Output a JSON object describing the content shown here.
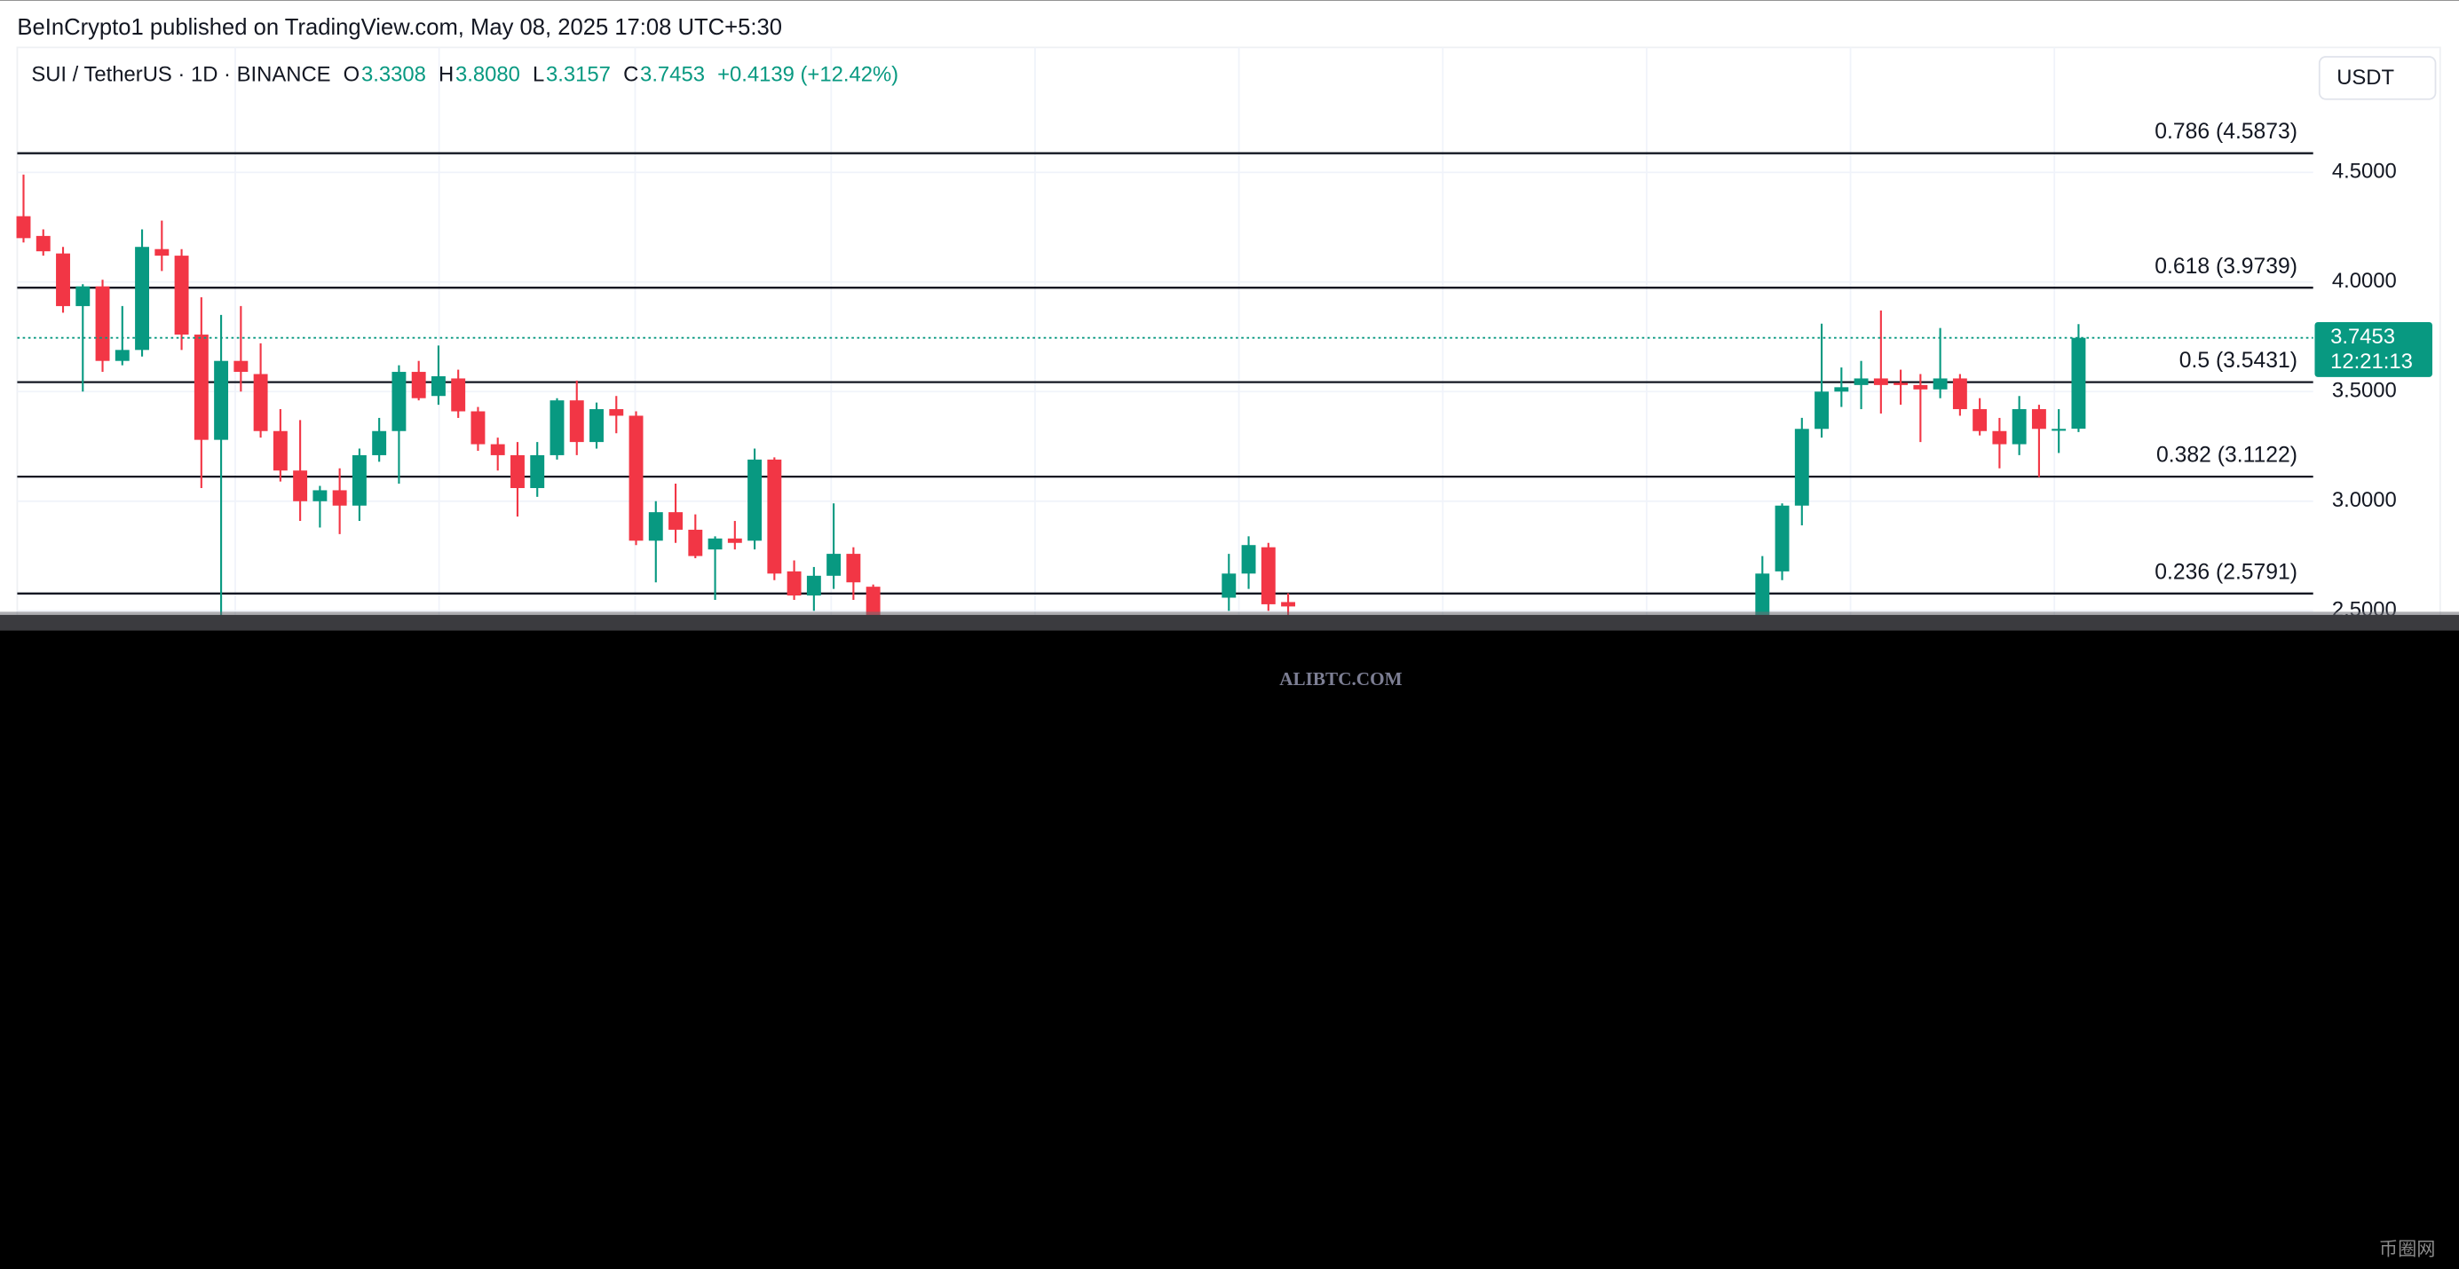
{
  "header": {
    "published": "BeInCrypto1 published on TradingView.com, May 08, 2025 17:08 UTC+5:30"
  },
  "chart_data": {
    "type": "candlestick",
    "symbol": "SUI / TetherUS · 1D · BINANCE",
    "ohlc_legend": [
      {
        "key": "O",
        "value": "3.3308"
      },
      {
        "key": "H",
        "value": "3.8080"
      },
      {
        "key": "L",
        "value": "3.3157"
      },
      {
        "key": "C",
        "value": "3.7453"
      }
    ],
    "change": "+0.4139 (+12.42%)",
    "currency": "USDT",
    "countdown": "12:21:13",
    "up_color": "#089981",
    "down_color": "#f23645",
    "level_color": "#131722",
    "grid": true,
    "ylim": [
      2.46,
      5.07
    ],
    "yticks": [
      {
        "value": 4.5,
        "label": "4.5000"
      },
      {
        "value": 4.0,
        "label": "4.0000"
      },
      {
        "value": 3.5,
        "label": "3.5000"
      },
      {
        "value": 3.0,
        "label": "3.0000"
      },
      {
        "value": 2.5,
        "label": "2.5000"
      }
    ],
    "fib_levels": [
      {
        "label": "0.786 (4.5873)",
        "value": 4.5873
      },
      {
        "label": "0.618 (3.9739)",
        "value": 3.9739
      },
      {
        "label": "0.5 (3.5431)",
        "value": 3.5431
      },
      {
        "label": "0.382 (3.1122)",
        "value": 3.1122
      },
      {
        "label": "0.236 (2.5791)",
        "value": 2.5791
      }
    ],
    "open": [
      4.3,
      4.21,
      4.13,
      3.89,
      3.98,
      3.64,
      3.69,
      4.15,
      4.12,
      3.76,
      3.28,
      3.64,
      3.58,
      3.32,
      3.14,
      3.0,
      3.05,
      2.98,
      3.21,
      3.32,
      3.59,
      3.48,
      3.56,
      3.41,
      3.26,
      3.21,
      3.06,
      3.21,
      3.46,
      3.27,
      3.42,
      3.39,
      2.82,
      2.95,
      2.87,
      2.78,
      2.83,
      2.82,
      3.19,
      2.68,
      2.57,
      2.66,
      2.76,
      2.61,
      null,
      null,
      null,
      null,
      null,
      null,
      null,
      null,
      null,
      null,
      null,
      null,
      null,
      null,
      null,
      null,
      null,
      2.56,
      2.67,
      2.79,
      2.54,
      null,
      null,
      null,
      null,
      null,
      null,
      null,
      null,
      null,
      null,
      null,
      null,
      null,
      null,
      null,
      null,
      null,
      null,
      null,
      null,
      null,
      null,
      null,
      2.48,
      2.68,
      2.98,
      3.33,
      3.5,
      3.53,
      3.56,
      3.54,
      3.53,
      3.51,
      3.56,
      3.42,
      3.32,
      3.26,
      3.42,
      3.33,
      3.3308
    ],
    "high": [
      4.49,
      4.24,
      4.16,
      3.99,
      4.01,
      3.89,
      4.24,
      4.28,
      4.15,
      3.93,
      3.85,
      3.89,
      3.72,
      3.42,
      3.37,
      3.07,
      3.15,
      3.24,
      3.38,
      3.62,
      3.64,
      3.71,
      3.6,
      3.43,
      3.29,
      3.27,
      3.27,
      3.47,
      3.55,
      3.45,
      3.48,
      3.41,
      3.0,
      3.08,
      2.94,
      2.84,
      2.91,
      3.24,
      3.2,
      2.73,
      2.7,
      2.99,
      2.79,
      2.62,
      null,
      null,
      null,
      null,
      null,
      null,
      null,
      null,
      null,
      null,
      null,
      null,
      null,
      null,
      null,
      null,
      null,
      2.76,
      2.84,
      2.81,
      2.58,
      null,
      null,
      null,
      null,
      null,
      null,
      null,
      null,
      null,
      null,
      null,
      null,
      null,
      null,
      null,
      null,
      null,
      null,
      null,
      null,
      null,
      null,
      null,
      2.75,
      2.99,
      3.38,
      3.81,
      3.61,
      3.64,
      3.87,
      3.6,
      3.58,
      3.79,
      3.58,
      3.47,
      3.38,
      3.48,
      3.44,
      3.42,
      3.808
    ],
    "low": [
      4.18,
      4.12,
      3.86,
      3.5,
      3.59,
      3.62,
      3.66,
      4.05,
      3.69,
      3.06,
      2.45,
      3.5,
      3.29,
      3.09,
      2.91,
      2.88,
      2.85,
      2.91,
      3.18,
      3.08,
      3.46,
      3.44,
      3.38,
      3.23,
      3.14,
      2.93,
      3.02,
      3.19,
      3.21,
      3.24,
      3.31,
      2.8,
      2.63,
      2.81,
      2.74,
      2.55,
      2.78,
      2.78,
      2.64,
      2.55,
      2.5,
      2.6,
      2.55,
      2.47,
      null,
      null,
      null,
      null,
      null,
      null,
      null,
      null,
      null,
      null,
      null,
      null,
      null,
      null,
      null,
      null,
      null,
      2.5,
      2.6,
      2.5,
      2.48,
      null,
      null,
      null,
      null,
      null,
      null,
      null,
      null,
      null,
      null,
      null,
      null,
      null,
      null,
      null,
      null,
      null,
      null,
      null,
      null,
      null,
      null,
      null,
      2.45,
      2.64,
      2.89,
      3.29,
      3.43,
      3.42,
      3.4,
      3.44,
      3.27,
      3.47,
      3.39,
      3.3,
      3.15,
      3.21,
      3.11,
      3.22,
      3.3157
    ],
    "close": [
      4.2,
      4.14,
      3.89,
      3.98,
      3.64,
      3.69,
      4.16,
      4.12,
      3.76,
      3.28,
      3.64,
      3.59,
      3.32,
      3.14,
      3.0,
      3.05,
      2.98,
      3.21,
      3.32,
      3.59,
      3.47,
      3.57,
      3.41,
      3.26,
      3.21,
      3.06,
      3.21,
      3.46,
      3.27,
      3.42,
      3.39,
      2.82,
      2.95,
      2.87,
      2.75,
      2.83,
      2.81,
      3.19,
      2.67,
      2.57,
      2.66,
      2.76,
      2.63,
      2.48,
      null,
      null,
      null,
      null,
      null,
      null,
      null,
      null,
      null,
      null,
      null,
      null,
      null,
      null,
      null,
      null,
      null,
      2.67,
      2.8,
      2.53,
      2.52,
      null,
      null,
      null,
      null,
      null,
      null,
      null,
      null,
      null,
      null,
      null,
      null,
      null,
      null,
      null,
      null,
      null,
      null,
      null,
      null,
      null,
      null,
      null,
      2.67,
      2.98,
      3.33,
      3.5,
      3.52,
      3.56,
      3.53,
      3.53,
      3.51,
      3.56,
      3.42,
      3.32,
      3.26,
      3.42,
      3.33,
      3.33,
      3.7453
    ]
  },
  "watermark": "ALIBTC.COM",
  "corner_logo": "币圈网"
}
